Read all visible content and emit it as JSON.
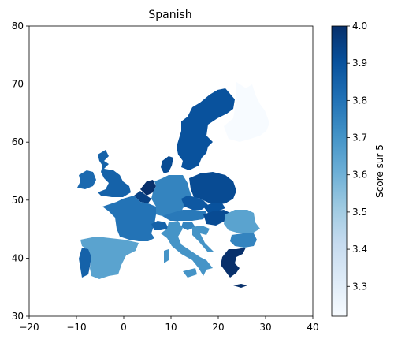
{
  "chart_data": {
    "type": "choropleth",
    "title": "Spanish",
    "colorbar_label": "Score sur 5",
    "colormap": "Blues",
    "color_range": [
      3.22,
      4.0
    ],
    "colorbar_ticks": [
      3.3,
      3.4,
      3.5,
      3.6,
      3.7,
      3.8,
      3.9,
      4.0
    ],
    "colorbar_tick_labels": [
      "3.3",
      "3.4",
      "3.5",
      "3.6",
      "3.7",
      "3.8",
      "3.9",
      "4.0"
    ],
    "xlim": [
      -20,
      40
    ],
    "ylim": [
      30,
      80
    ],
    "x_ticks": [
      -20,
      -10,
      0,
      10,
      20,
      30,
      40
    ],
    "x_tick_labels": [
      "−20",
      "−10",
      "0",
      "10",
      "20",
      "30",
      "40"
    ],
    "y_ticks": [
      30,
      40,
      50,
      60,
      70,
      80
    ],
    "y_tick_labels": [
      "30",
      "40",
      "50",
      "60",
      "70",
      "80"
    ],
    "regions": [
      {
        "name": "Finland",
        "value": 3.22
      },
      {
        "name": "Sweden",
        "value": 3.9
      },
      {
        "name": "United Kingdom",
        "value": 3.85
      },
      {
        "name": "Ireland",
        "value": 3.83
      },
      {
        "name": "Denmark",
        "value": 3.92
      },
      {
        "name": "Netherlands",
        "value": 4.0
      },
      {
        "name": "Belgium",
        "value": 3.95
      },
      {
        "name": "France",
        "value": 3.8
      },
      {
        "name": "Germany",
        "value": 3.75
      },
      {
        "name": "Poland",
        "value": 3.92
      },
      {
        "name": "Czechia",
        "value": 3.88
      },
      {
        "name": "Slovakia",
        "value": 3.9
      },
      {
        "name": "Austria",
        "value": 3.78
      },
      {
        "name": "Hungary",
        "value": 3.92
      },
      {
        "name": "Switzerland",
        "value": 3.85
      },
      {
        "name": "Italy",
        "value": 3.7
      },
      {
        "name": "Slovenia",
        "value": 3.75
      },
      {
        "name": "Croatia",
        "value": 3.7
      },
      {
        "name": "Spain",
        "value": 3.65
      },
      {
        "name": "Portugal",
        "value": 3.85
      },
      {
        "name": "Romania",
        "value": 3.65
      },
      {
        "name": "Bulgaria",
        "value": 3.75
      },
      {
        "name": "Greece",
        "value": 4.0
      }
    ]
  }
}
